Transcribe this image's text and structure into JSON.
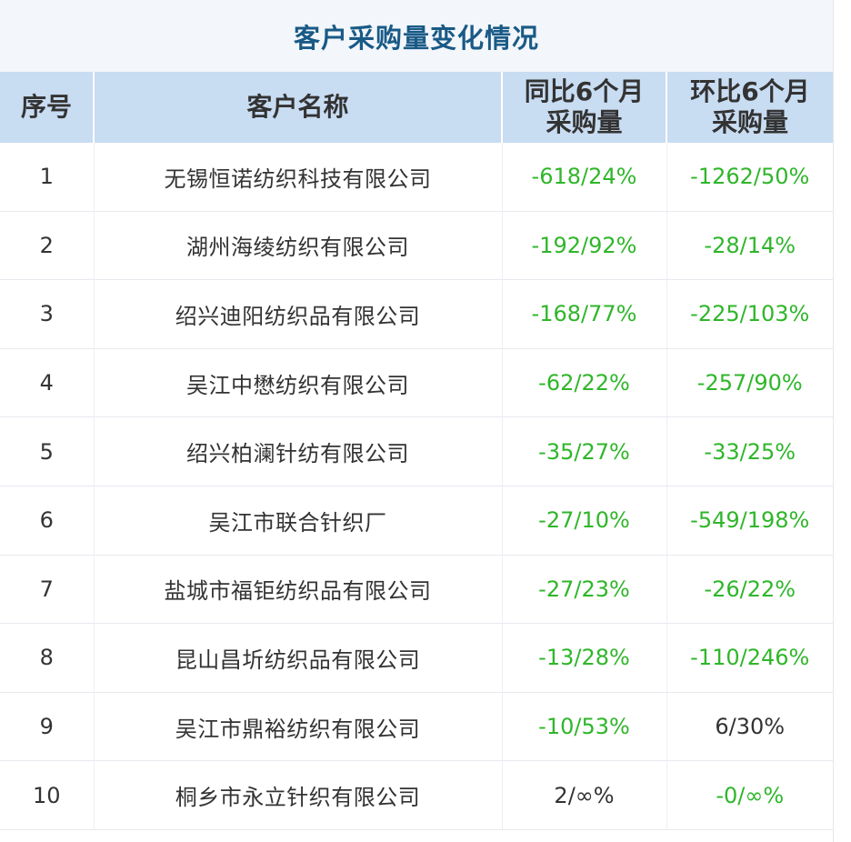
{
  "title": "客户采购量变化情况",
  "headers": {
    "index": "序号",
    "name": "客户名称",
    "yoy_line1": "同比6个月",
    "yoy_line2": "采购量",
    "mom_line1": "环比6个月",
    "mom_line2": "采购量"
  },
  "colors": {
    "title": "#195a86",
    "header_bg": "#c8dcf2",
    "negative": "#2fb62a",
    "positive": "#333333"
  },
  "rows": [
    {
      "index": "1",
      "name": "无锡恒诺纺织科技有限公司",
      "yoy": "-618/24%",
      "mom": "-1262/50%"
    },
    {
      "index": "2",
      "name": "湖州海绫纺织有限公司",
      "yoy": "-192/92%",
      "mom": "-28/14%"
    },
    {
      "index": "3",
      "name": "绍兴迪阳纺织品有限公司",
      "yoy": "-168/77%",
      "mom": "-225/103%"
    },
    {
      "index": "4",
      "name": "吴江中懋纺织有限公司",
      "yoy": "-62/22%",
      "mom": "-257/90%"
    },
    {
      "index": "5",
      "name": "绍兴柏澜针纺有限公司",
      "yoy": "-35/27%",
      "mom": "-33/25%"
    },
    {
      "index": "6",
      "name": "吴江市联合针织厂",
      "yoy": "-27/10%",
      "mom": "-549/198%"
    },
    {
      "index": "7",
      "name": "盐城市福钜纺织品有限公司",
      "yoy": "-27/23%",
      "mom": "-26/22%"
    },
    {
      "index": "8",
      "name": "昆山昌圻纺织品有限公司",
      "yoy": "-13/28%",
      "mom": "-110/246%"
    },
    {
      "index": "9",
      "name": "吴江市鼎裕纺织有限公司",
      "yoy": "-10/53%",
      "mom": "6/30%"
    },
    {
      "index": "10",
      "name": "桐乡市永立针织有限公司",
      "yoy": "2/∞%",
      "mom": "-0/∞%"
    }
  ]
}
